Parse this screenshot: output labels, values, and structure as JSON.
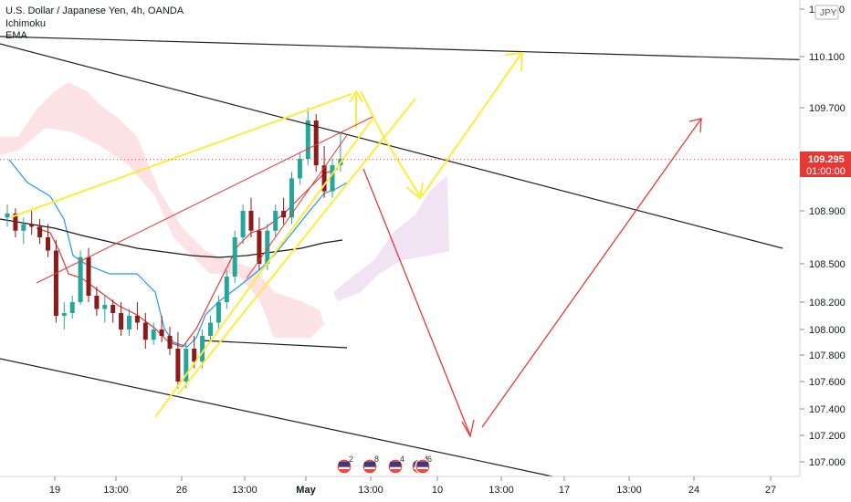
{
  "header": {
    "title": "U.S. Dollar / Japanese Yen, 4h, OANDA",
    "indicators": [
      "Ichimoku",
      "EMA"
    ]
  },
  "chart_data": {
    "type": "candlestick",
    "currency_badge": "JPY",
    "last_price_label": "109.295",
    "countdown_label": "01:00:00",
    "last_price": 109.295,
    "y_ticks": [
      "110.500",
      "110.100",
      "109.700",
      "109.300",
      "108.900",
      "108.500",
      "108.200",
      "108.000",
      "107.800",
      "107.600",
      "107.400",
      "107.200",
      "107.000"
    ],
    "x_ticks": [
      "19",
      "13:00",
      "26",
      "13:00",
      "May",
      "13:00",
      "10",
      "13:00",
      "17",
      "13:00",
      "24",
      "27"
    ],
    "event_badges": [
      "2",
      "8",
      "4",
      "4",
      "6"
    ],
    "candles": [
      [
        108.85,
        108.95,
        108.78,
        108.88
      ],
      [
        108.88,
        108.92,
        108.7,
        108.75
      ],
      [
        108.75,
        108.85,
        108.65,
        108.8
      ],
      [
        108.8,
        108.9,
        108.72,
        108.78
      ],
      [
        108.78,
        108.84,
        108.65,
        108.7
      ],
      [
        108.7,
        108.8,
        108.55,
        108.6
      ],
      [
        108.6,
        108.68,
        108.05,
        108.1
      ],
      [
        108.1,
        108.2,
        108.0,
        108.12
      ],
      [
        108.12,
        108.25,
        108.08,
        108.2
      ],
      [
        108.2,
        108.6,
        108.18,
        108.55
      ],
      [
        108.55,
        108.62,
        108.2,
        108.25
      ],
      [
        108.25,
        108.32,
        108.1,
        108.15
      ],
      [
        108.15,
        108.25,
        108.05,
        108.18
      ],
      [
        108.18,
        108.22,
        108.05,
        108.12
      ],
      [
        108.12,
        108.2,
        107.95,
        108.0
      ],
      [
        108.0,
        108.15,
        107.95,
        108.1
      ],
      [
        108.1,
        108.2,
        108.0,
        108.05
      ],
      [
        108.05,
        108.12,
        107.85,
        107.92
      ],
      [
        107.92,
        108.05,
        107.88,
        108.0
      ],
      [
        108.0,
        108.1,
        107.9,
        107.95
      ],
      [
        107.95,
        108.02,
        107.8,
        107.85
      ],
      [
        107.85,
        107.98,
        107.55,
        107.6
      ],
      [
        107.6,
        107.9,
        107.55,
        107.85
      ],
      [
        107.85,
        107.95,
        107.7,
        107.75
      ],
      [
        107.75,
        108.0,
        107.7,
        107.95
      ],
      [
        107.95,
        108.1,
        107.9,
        108.05
      ],
      [
        108.05,
        108.25,
        108.0,
        108.2
      ],
      [
        108.2,
        108.45,
        108.15,
        108.4
      ],
      [
        108.4,
        108.75,
        108.35,
        108.7
      ],
      [
        108.7,
        108.95,
        108.65,
        108.9
      ],
      [
        108.9,
        109.0,
        108.7,
        108.75
      ],
      [
        108.75,
        108.85,
        108.45,
        108.5
      ],
      [
        108.5,
        108.8,
        108.45,
        108.75
      ],
      [
        108.75,
        108.95,
        108.7,
        108.9
      ],
      [
        108.9,
        109.0,
        108.8,
        108.85
      ],
      [
        108.85,
        109.2,
        108.8,
        109.15
      ],
      [
        109.15,
        109.35,
        109.1,
        109.3
      ],
      [
        109.3,
        109.7,
        109.25,
        109.6
      ],
      [
        109.6,
        109.65,
        109.2,
        109.25
      ],
      [
        109.25,
        109.4,
        109.0,
        109.05
      ],
      [
        109.05,
        109.3,
        109.0,
        109.25
      ],
      [
        109.25,
        109.5,
        109.2,
        109.3
      ]
    ]
  }
}
